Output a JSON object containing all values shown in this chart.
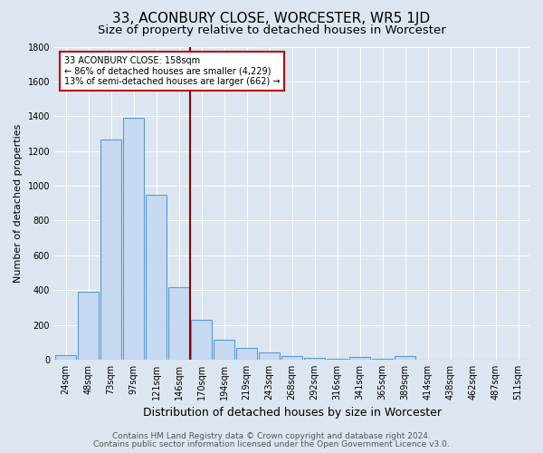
{
  "title": "33, ACONBURY CLOSE, WORCESTER, WR5 1JD",
  "subtitle": "Size of property relative to detached houses in Worcester",
  "xlabel": "Distribution of detached houses by size in Worcester",
  "ylabel": "Number of detached properties",
  "categories": [
    "24sqm",
    "48sqm",
    "73sqm",
    "97sqm",
    "121sqm",
    "146sqm",
    "170sqm",
    "194sqm",
    "219sqm",
    "243sqm",
    "268sqm",
    "292sqm",
    "316sqm",
    "341sqm",
    "365sqm",
    "389sqm",
    "414sqm",
    "438sqm",
    "462sqm",
    "487sqm",
    "511sqm"
  ],
  "values": [
    25,
    390,
    1265,
    1390,
    950,
    415,
    230,
    115,
    65,
    42,
    18,
    8,
    5,
    14,
    5,
    22,
    2,
    2,
    2,
    2,
    2
  ],
  "bar_color": "#c6d9f0",
  "bar_edge_color": "#5b9bd5",
  "background_color": "#dce6f1",
  "plot_bg_color": "#dce6f1",
  "grid_color": "#ffffff",
  "vline_color": "#8b0000",
  "annotation_text": "33 ACONBURY CLOSE: 158sqm\n← 86% of detached houses are smaller (4,229)\n13% of semi-detached houses are larger (662) →",
  "annotation_box_color": "#ffffff",
  "annotation_box_edge": "#c00000",
  "footer_line1": "Contains HM Land Registry data © Crown copyright and database right 2024.",
  "footer_line2": "Contains public sector information licensed under the Open Government Licence v3.0.",
  "ylim": [
    0,
    1800
  ],
  "yticks": [
    0,
    200,
    400,
    600,
    800,
    1000,
    1200,
    1400,
    1600,
    1800
  ],
  "title_fontsize": 11,
  "subtitle_fontsize": 9.5,
  "xlabel_fontsize": 9,
  "ylabel_fontsize": 8,
  "tick_fontsize": 7,
  "annotation_fontsize": 7,
  "footer_fontsize": 6.5
}
